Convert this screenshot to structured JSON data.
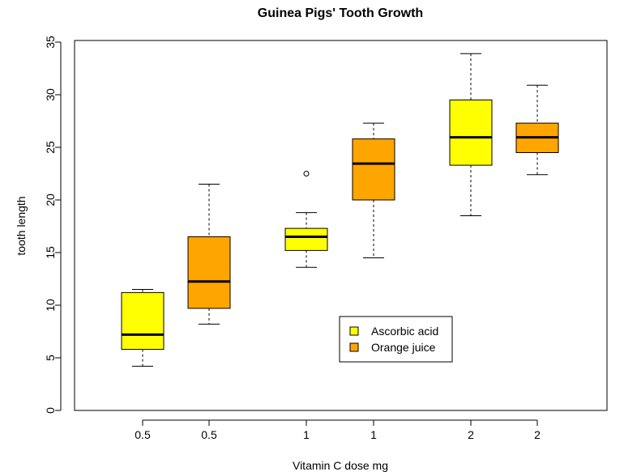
{
  "chart_data": {
    "type": "boxplot",
    "title": "Guinea Pigs' Tooth Growth",
    "xlabel": "Vitamin C dose mg",
    "ylabel": "tooth length",
    "ylim": [
      0,
      35
    ],
    "yticks": [
      0,
      5,
      10,
      15,
      20,
      25,
      30,
      35
    ],
    "categories": [
      "0.5",
      "0.5",
      "1",
      "1",
      "2",
      "2"
    ],
    "boxes": [
      {
        "label": "0.5",
        "series": "Ascorbic acid",
        "min": 4.2,
        "q1": 5.8,
        "median": 7.2,
        "q3": 11.2,
        "max": 11.5,
        "outliers": []
      },
      {
        "label": "0.5",
        "series": "Orange juice",
        "min": 8.2,
        "q1": 9.7,
        "median": 12.25,
        "q3": 16.5,
        "max": 21.5,
        "outliers": []
      },
      {
        "label": "1",
        "series": "Ascorbic acid",
        "min": 13.6,
        "q1": 15.2,
        "median": 16.5,
        "q3": 17.3,
        "max": 18.8,
        "outliers": [
          22.5
        ]
      },
      {
        "label": "1",
        "series": "Orange juice",
        "min": 14.5,
        "q1": 20.0,
        "median": 23.45,
        "q3": 25.8,
        "max": 27.3,
        "outliers": []
      },
      {
        "label": "2",
        "series": "Ascorbic acid",
        "min": 18.5,
        "q1": 23.3,
        "median": 25.95,
        "q3": 29.5,
        "max": 33.9,
        "outliers": []
      },
      {
        "label": "2",
        "series": "Orange juice",
        "min": 22.4,
        "q1": 24.5,
        "median": 25.95,
        "q3": 27.3,
        "max": 30.9,
        "outliers": []
      }
    ],
    "legend": {
      "position": "bottom-center",
      "entries": [
        {
          "label": "Ascorbic acid",
          "color": "#ffff00"
        },
        {
          "label": "Orange juice",
          "color": "#ffa500"
        }
      ]
    },
    "grid": false
  }
}
